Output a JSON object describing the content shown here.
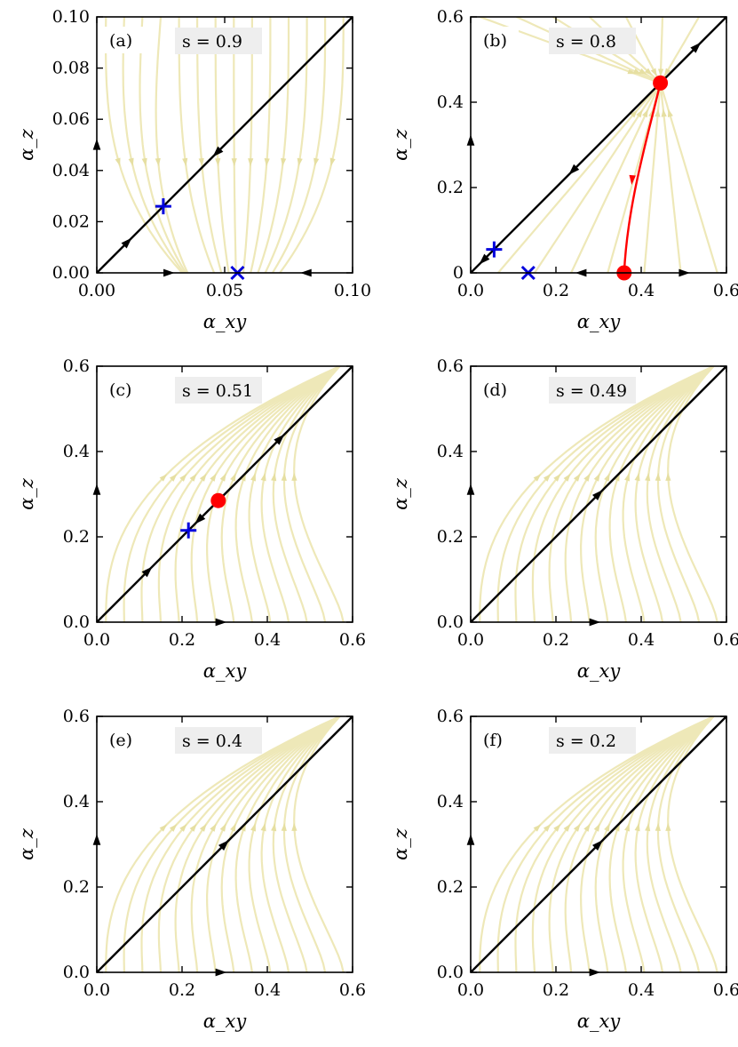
{
  "figure": {
    "colors": {
      "streamline": "#eee8b8",
      "stream_arrow": "#e6dfa2",
      "diagonal": "#000000",
      "stable_fixed_point": "#ff0000",
      "marker_plus": "#0000dd",
      "marker_x": "#0000dd",
      "legend_box": "#eeeeee"
    }
  },
  "chart_data": [
    {
      "type": "scatter",
      "panel": "(a)",
      "param_label": "s = 0.9",
      "xlabel": "α_xy",
      "ylabel": "α_z",
      "xlim": [
        0,
        0.1
      ],
      "ylim": [
        0,
        0.1
      ],
      "xticks": [
        0.0,
        0.05,
        0.1
      ],
      "xtick_labels": [
        "0.00",
        "0.05",
        "0.10"
      ],
      "yticks": [
        0.0,
        0.02,
        0.04,
        0.06,
        0.08,
        0.1
      ],
      "ytick_labels": [
        "0.00",
        "0.02",
        "0.04",
        "0.06",
        "0.08",
        "0.10"
      ],
      "diagonal_flow": [
        {
          "x": 0.012,
          "y": 0.012,
          "dir": "out"
        },
        {
          "x": 0.047,
          "y": 0.047,
          "dir": "in"
        }
      ],
      "axis_flow_x": [
        {
          "x": 0.028,
          "dir": "right"
        },
        {
          "x": 0.082,
          "dir": "left"
        }
      ],
      "axis_flow_y": [
        {
          "y": 0.05,
          "dir": "up"
        }
      ],
      "fixed_points": [
        {
          "marker": "plus",
          "x": 0.026,
          "y": 0.026
        },
        {
          "marker": "x",
          "x": 0.055,
          "y": 0.0
        }
      ],
      "flow": [
        {
          "dir": "toward_x",
          "xs": [
            0.012,
            0.02,
            0.028,
            0.036,
            0.044,
            0.052,
            0.06,
            0.068,
            0.076,
            0.084,
            0.092
          ]
        },
        {
          "dir": "toward_y",
          "ys": [
            0.04,
            0.05,
            0.06,
            0.07,
            0.08,
            0.09,
            0.098
          ]
        }
      ]
    },
    {
      "type": "scatter",
      "panel": "(b)",
      "param_label": "s = 0.8",
      "xlabel": "α_xy",
      "ylabel": "α_z",
      "xlim": [
        0,
        0.6
      ],
      "ylim": [
        0,
        0.6
      ],
      "xticks": [
        0.0,
        0.2,
        0.4,
        0.6
      ],
      "xtick_labels": [
        "0.0",
        "0.2",
        "0.4",
        "0.6"
      ],
      "yticks": [
        0.0,
        0.2,
        0.4,
        0.6
      ],
      "ytick_labels": [
        "0",
        "0.2",
        "0.4",
        "0.6"
      ],
      "diagonal_flow": [
        {
          "x": 0.03,
          "y": 0.03,
          "dir": "in"
        },
        {
          "x": 0.24,
          "y": 0.24,
          "dir": "in"
        },
        {
          "x": 0.53,
          "y": 0.53,
          "dir": "out"
        }
      ],
      "axis_flow_x": [
        {
          "x": 0.26,
          "dir": "left"
        },
        {
          "x": 0.5,
          "dir": "right"
        }
      ],
      "axis_flow_y": [
        {
          "y": 0.31,
          "dir": "up"
        }
      ],
      "fixed_points": [
        {
          "marker": "plus",
          "x": 0.055,
          "y": 0.055
        },
        {
          "marker": "x",
          "x": 0.135,
          "y": 0.0
        },
        {
          "marker": "dot",
          "x": 0.445,
          "y": 0.445
        },
        {
          "marker": "dot",
          "x": 0.36,
          "y": 0.0
        }
      ],
      "separatrix": {
        "from": [
          0.36,
          0.0
        ],
        "to": [
          0.445,
          0.445
        ]
      },
      "flow": [
        {
          "dir": "converge",
          "target": [
            0.445,
            0.445
          ],
          "xs": [
            0.06,
            0.12,
            0.18,
            0.24,
            0.3,
            0.36,
            0.5,
            0.56
          ]
        }
      ]
    },
    {
      "type": "scatter",
      "panel": "(c)",
      "param_label": "s = 0.51",
      "xlabel": "α_xy",
      "ylabel": "α_z",
      "xlim": [
        0,
        0.6
      ],
      "ylim": [
        0,
        0.6
      ],
      "xticks": [
        0.0,
        0.2,
        0.4,
        0.6
      ],
      "xtick_labels": [
        "0.0",
        "0.2",
        "0.4",
        "0.6"
      ],
      "yticks": [
        0.0,
        0.2,
        0.4,
        0.6
      ],
      "ytick_labels": [
        "0.0",
        "0.2",
        "0.4",
        "0.6"
      ],
      "diagonal_flow": [
        {
          "x": 0.12,
          "y": 0.12,
          "dir": "out"
        },
        {
          "x": 0.24,
          "y": 0.24,
          "dir": "in"
        },
        {
          "x": 0.43,
          "y": 0.43,
          "dir": "out"
        }
      ],
      "axis_flow_x": [
        {
          "x": 0.29,
          "dir": "right"
        }
      ],
      "axis_flow_y": [
        {
          "y": 0.31,
          "dir": "up"
        }
      ],
      "fixed_points": [
        {
          "marker": "plus",
          "x": 0.215,
          "y": 0.215
        },
        {
          "marker": "dot",
          "x": 0.285,
          "y": 0.285
        }
      ],
      "flow": [
        {
          "dir": "toward_diag",
          "xs": [
            0.04,
            0.08,
            0.12,
            0.16,
            0.2,
            0.24,
            0.28,
            0.34,
            0.4,
            0.46,
            0.52,
            0.58
          ]
        }
      ]
    },
    {
      "type": "scatter",
      "panel": "(d)",
      "param_label": "s = 0.49",
      "xlabel": "α_xy",
      "ylabel": "α_z",
      "xlim": [
        0,
        0.6
      ],
      "ylim": [
        0,
        0.6
      ],
      "xticks": [
        0.0,
        0.2,
        0.4,
        0.6
      ],
      "xtick_labels": [
        "0.0",
        "0.2",
        "0.4",
        "0.6"
      ],
      "yticks": [
        0.0,
        0.2,
        0.4,
        0.6
      ],
      "ytick_labels": [
        "0.0",
        "0.2",
        "0.4",
        "0.6"
      ],
      "diagonal_flow": [
        {
          "x": 0.3,
          "y": 0.3,
          "dir": "out"
        }
      ],
      "axis_flow_x": [
        {
          "x": 0.29,
          "dir": "right"
        }
      ],
      "axis_flow_y": [
        {
          "y": 0.31,
          "dir": "up"
        }
      ],
      "fixed_points": [],
      "flow": [
        {
          "dir": "toward_diag",
          "xs": [
            0.04,
            0.08,
            0.12,
            0.16,
            0.2,
            0.24,
            0.28,
            0.34,
            0.4,
            0.46,
            0.52,
            0.58
          ]
        }
      ]
    },
    {
      "type": "scatter",
      "panel": "(e)",
      "param_label": "s = 0.4",
      "xlabel": "α_xy",
      "ylabel": "α_z",
      "xlim": [
        0,
        0.6
      ],
      "ylim": [
        0,
        0.6
      ],
      "xticks": [
        0.0,
        0.2,
        0.4,
        0.6
      ],
      "xtick_labels": [
        "0.0",
        "0.2",
        "0.4",
        "0.6"
      ],
      "yticks": [
        0.0,
        0.2,
        0.4,
        0.6
      ],
      "ytick_labels": [
        "0.0",
        "0.2",
        "0.4",
        "0.6"
      ],
      "diagonal_flow": [
        {
          "x": 0.3,
          "y": 0.3,
          "dir": "out"
        }
      ],
      "axis_flow_x": [
        {
          "x": 0.29,
          "dir": "right"
        }
      ],
      "axis_flow_y": [
        {
          "y": 0.31,
          "dir": "up"
        }
      ],
      "fixed_points": [],
      "flow": [
        {
          "dir": "toward_diag",
          "xs": [
            0.04,
            0.08,
            0.12,
            0.16,
            0.2,
            0.24,
            0.28,
            0.34,
            0.4,
            0.46,
            0.52,
            0.58
          ]
        }
      ]
    },
    {
      "type": "scatter",
      "panel": "(f)",
      "param_label": "s = 0.2",
      "xlabel": "α_xy",
      "ylabel": "α_z",
      "xlim": [
        0,
        0.6
      ],
      "ylim": [
        0,
        0.6
      ],
      "xticks": [
        0.0,
        0.2,
        0.4,
        0.6
      ],
      "xtick_labels": [
        "0.0",
        "0.2",
        "0.4",
        "0.6"
      ],
      "yticks": [
        0.0,
        0.2,
        0.4,
        0.6
      ],
      "ytick_labels": [
        "0.0",
        "0.2",
        "0.4",
        "0.6"
      ],
      "diagonal_flow": [
        {
          "x": 0.3,
          "y": 0.3,
          "dir": "out"
        }
      ],
      "axis_flow_x": [
        {
          "x": 0.29,
          "dir": "right"
        }
      ],
      "axis_flow_y": [
        {
          "y": 0.31,
          "dir": "up"
        }
      ],
      "fixed_points": [],
      "flow": [
        {
          "dir": "toward_diag",
          "xs": [
            0.04,
            0.08,
            0.12,
            0.16,
            0.2,
            0.24,
            0.28,
            0.34,
            0.4,
            0.46,
            0.52,
            0.58
          ]
        }
      ]
    }
  ]
}
